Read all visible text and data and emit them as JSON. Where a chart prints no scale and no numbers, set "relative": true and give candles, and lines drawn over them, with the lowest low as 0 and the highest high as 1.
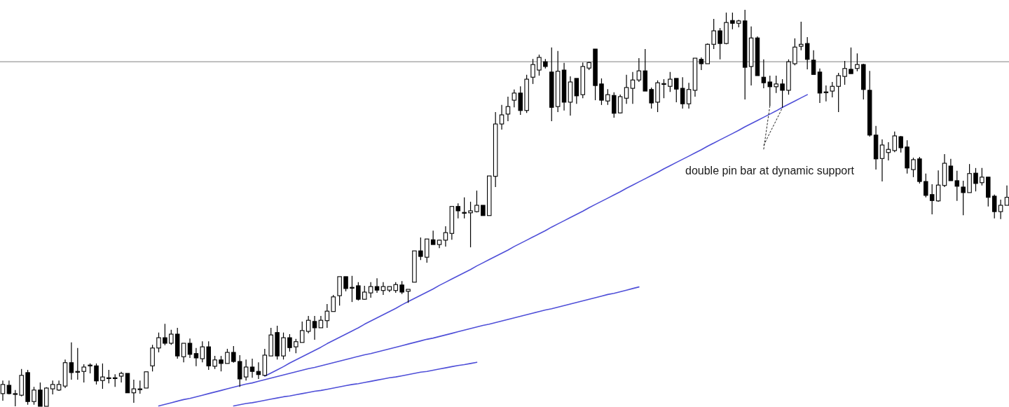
{
  "chart_data": {
    "type": "candlestick",
    "relative": true,
    "color": "#000000",
    "categories": [
      null,
      null,
      null,
      null,
      null,
      null,
      null,
      null,
      null,
      null,
      null,
      null,
      null,
      null,
      null,
      null,
      null,
      null,
      null,
      null,
      null,
      null,
      null,
      null,
      null,
      null,
      null,
      null,
      null,
      null,
      null,
      null,
      null,
      null,
      null,
      null,
      null,
      null,
      null,
      null,
      null,
      null,
      null,
      null,
      null,
      null,
      null,
      null,
      null,
      null,
      null,
      null,
      null,
      null,
      null,
      null,
      null,
      null,
      null,
      null,
      null,
      null,
      null,
      null,
      null,
      null,
      null,
      null,
      null,
      null,
      null,
      null,
      null,
      null,
      null,
      null,
      null,
      null,
      null,
      null,
      null,
      null,
      null,
      null,
      null,
      null,
      null,
      null,
      null,
      null,
      null,
      null,
      null,
      null,
      null,
      null,
      null,
      null,
      null,
      null,
      null,
      null,
      null,
      null,
      null,
      null,
      null,
      null,
      null,
      null,
      null,
      null,
      null,
      null,
      null,
      null,
      null,
      null,
      null,
      null,
      null,
      null,
      null,
      null,
      null,
      null,
      null,
      null,
      null,
      null,
      null,
      null,
      null,
      null,
      null,
      null,
      null,
      null,
      null,
      null,
      null,
      null,
      null,
      null,
      null,
      null,
      null,
      null,
      null,
      null,
      null,
      null,
      null,
      null,
      null,
      null,
      null,
      null,
      null,
      null,
      null,
      null
    ],
    "ohlc": [
      [
        0.032,
        0.065,
        0.014,
        0.055
      ],
      [
        0.053,
        0.065,
        0.03,
        0.032
      ],
      [
        0.032,
        0.041,
        0,
        0.032
      ],
      [
        0.028,
        0.094,
        0.025,
        0.078
      ],
      [
        0.085,
        0.092,
        0.004,
        0.012
      ],
      [
        0.012,
        0.049,
        0.004,
        0.041
      ],
      [
        0.041,
        0.06,
        0,
        0
      ],
      [
        0,
        0.048,
        0,
        0.046
      ],
      [
        0.044,
        0.065,
        0.03,
        0.055
      ],
      [
        0.041,
        0.065,
        0.039,
        0.055
      ],
      [
        0.051,
        0.118,
        0.046,
        0.11
      ],
      [
        0.11,
        0.161,
        0.067,
        0.085
      ],
      [
        0.088,
        0.147,
        0.067,
        0.088
      ],
      [
        0.088,
        0.106,
        0.06,
        0.099
      ],
      [
        0.104,
        0.108,
        0.083,
        0.104
      ],
      [
        0.102,
        0.108,
        0.055,
        0.064
      ],
      [
        0.065,
        0.108,
        0.044,
        0.074
      ],
      [
        0.072,
        0.092,
        0.058,
        0.072
      ],
      [
        0.072,
        0.081,
        0.049,
        0.072
      ],
      [
        0.076,
        0.087,
        0.06,
        0.083
      ],
      [
        0.083,
        0.083,
        0.034,
        0.034
      ],
      [
        0.034,
        0.067,
        0.009,
        0.044
      ],
      [
        0.044,
        0.065,
        0.032,
        0.044
      ],
      [
        0.046,
        0.087,
        0.046,
        0.087
      ],
      [
        0.102,
        0.155,
        0.088,
        0.147
      ],
      [
        0.147,
        0.186,
        0.136,
        0.173
      ],
      [
        0.173,
        0.208,
        0.154,
        0.159
      ],
      [
        0.159,
        0.193,
        0.155,
        0.182
      ],
      [
        0.182,
        0.198,
        0.12,
        0.127
      ],
      [
        0.125,
        0.159,
        0.111,
        0.159
      ],
      [
        0.159,
        0.171,
        0.122,
        0.131
      ],
      [
        0.133,
        0.147,
        0.101,
        0.122
      ],
      [
        0.12,
        0.164,
        0.111,
        0.15
      ],
      [
        0.15,
        0.164,
        0.092,
        0.102
      ],
      [
        0.101,
        0.127,
        0.094,
        0.117
      ],
      [
        0.117,
        0.127,
        0.088,
        0.108
      ],
      [
        0.108,
        0.145,
        0.108,
        0.136
      ],
      [
        0.136,
        0.152,
        0.11,
        0.113
      ],
      [
        0.113,
        0.129,
        0.049,
        0.069
      ],
      [
        0.074,
        0.118,
        0.065,
        0.099
      ],
      [
        0.099,
        0.12,
        0.072,
        0.088
      ],
      [
        0.088,
        0.111,
        0.069,
        0.08
      ],
      [
        0.078,
        0.145,
        0.076,
        0.129
      ],
      [
        0.127,
        0.198,
        0.127,
        0.18
      ],
      [
        0.186,
        0.203,
        0.118,
        0.127
      ],
      [
        0.127,
        0.186,
        0.118,
        0.173
      ],
      [
        0.173,
        0.182,
        0.138,
        0.148
      ],
      [
        0.15,
        0.17,
        0.134,
        0.163
      ],
      [
        0.161,
        0.214,
        0.161,
        0.191
      ],
      [
        0.189,
        0.228,
        0.184,
        0.217
      ],
      [
        0.214,
        0.228,
        0.168,
        0.198
      ],
      [
        0.198,
        0.228,
        0.198,
        0.217
      ],
      [
        0.216,
        0.258,
        0.198,
        0.24
      ],
      [
        0.239,
        0.281,
        0.239,
        0.276
      ],
      [
        0.279,
        0.327,
        0.254,
        0.327
      ],
      [
        0.327,
        0.327,
        0.29,
        0.297
      ],
      [
        0.3,
        0.329,
        0.263,
        0.3
      ],
      [
        0.304,
        0.313,
        0.267,
        0.27
      ],
      [
        0.27,
        0.304,
        0.269,
        0.288
      ],
      [
        0.286,
        0.313,
        0.274,
        0.302
      ],
      [
        0.302,
        0.323,
        0.286,
        0.293
      ],
      [
        0.292,
        0.313,
        0.281,
        0.302
      ],
      [
        0.293,
        0.302,
        0.288,
        0.302
      ],
      [
        0.292,
        0.313,
        0.286,
        0.307
      ],
      [
        0.306,
        0.316,
        0.283,
        0.288
      ],
      [
        0.29,
        0.295,
        0.261,
        0.295
      ],
      [
        0.313,
        0.392,
        0.313,
        0.392
      ],
      [
        0.392,
        0.426,
        0.369,
        0.378
      ],
      [
        0.376,
        0.422,
        0.362,
        0.422
      ],
      [
        0.42,
        0.443,
        0.408,
        0.408
      ],
      [
        0.408,
        0.42,
        0.399,
        0.419
      ],
      [
        0.419,
        0.454,
        0.403,
        0.438
      ],
      [
        0.436,
        0.504,
        0.42,
        0.504
      ],
      [
        0.504,
        0.512,
        0.474,
        0.493
      ],
      [
        0.489,
        0.527,
        0.474,
        0.489
      ],
      [
        0.488,
        0.516,
        0.401,
        0.493
      ],
      [
        0.491,
        0.544,
        0.489,
        0.507
      ],
      [
        0.507,
        0.507,
        0.481,
        0.481
      ],
      [
        0.481,
        0.581,
        0.481,
        0.581
      ],
      [
        0.58,
        0.742,
        0.553,
        0.712
      ],
      [
        0.712,
        0.76,
        0.698,
        0.735
      ],
      [
        0.737,
        0.781,
        0.719,
        0.756
      ],
      [
        0.772,
        0.799,
        0.754,
        0.79
      ],
      [
        0.79,
        0.807,
        0.735,
        0.746
      ],
      [
        0.746,
        0.836,
        0.74,
        0.825
      ],
      [
        0.83,
        0.876,
        0.813,
        0.862
      ],
      [
        0.848,
        0.887,
        0.834,
        0.88
      ],
      [
        0.869,
        0.876,
        0.852,
        0.857
      ],
      [
        0.843,
        0.905,
        0.719,
        0.754
      ],
      [
        0.756,
        0.896,
        0.742,
        0.845
      ],
      [
        0.848,
        0.866,
        0.746,
        0.767
      ],
      [
        0.767,
        0.832,
        0.733,
        0.818
      ],
      [
        0.827,
        0.827,
        0.763,
        0.783
      ],
      [
        0.786,
        0.867,
        0.777,
        0.857
      ],
      [
        0.853,
        0.869,
        0.848,
        0.867
      ],
      [
        0.901,
        0.901,
        0.772,
        0.809
      ],
      [
        0.813,
        0.827,
        0.76,
        0.772
      ],
      [
        0.77,
        0.8,
        0.76,
        0.786
      ],
      [
        0.784,
        0.792,
        0.728,
        0.739
      ],
      [
        0.74,
        0.786,
        0.739,
        0.781
      ],
      [
        0.777,
        0.836,
        0.763,
        0.804
      ],
      [
        0.802,
        0.843,
        0.763,
        0.823
      ],
      [
        0.823,
        0.878,
        0.818,
        0.846
      ],
      [
        0.846,
        0.901,
        0.795,
        0.795
      ],
      [
        0.799,
        0.804,
        0.751,
        0.765
      ],
      [
        0.767,
        0.822,
        0.742,
        0.816
      ],
      [
        0.814,
        0.825,
        0.777,
        0.814
      ],
      [
        0.807,
        0.843,
        0.793,
        0.825
      ],
      [
        0.827,
        0.827,
        0.767,
        0.8
      ],
      [
        0.802,
        0.83,
        0.751,
        0.763
      ],
      [
        0.763,
        0.816,
        0.751,
        0.799
      ],
      [
        0.797,
        0.878,
        0.781,
        0.878
      ],
      [
        0.875,
        0.88,
        0.848,
        0.864
      ],
      [
        0.864,
        0.915,
        0.864,
        0.913
      ],
      [
        0.913,
        0.977,
        0.901,
        0.947
      ],
      [
        0.947,
        0.954,
        0.875,
        0.915
      ],
      [
        0.915,
        0.993,
        0.913,
        0.968
      ],
      [
        0.973,
        0.993,
        0.951,
        0.966
      ],
      [
        0.966,
        0.975,
        0.956,
        0.972
      ],
      [
        0.972,
        1,
        0.774,
        0.855
      ],
      [
        0.857,
        0.958,
        0.809,
        0.929
      ],
      [
        0.929,
        0.933,
        0.834,
        0.834
      ],
      [
        0.83,
        0.875,
        0.802,
        0.816
      ],
      [
        0.818,
        0.834,
        0.758,
        0.806
      ],
      [
        0.806,
        0.834,
        0.79,
        0.813
      ],
      [
        0.813,
        0.825,
        0.753,
        0.797
      ],
      [
        0.797,
        0.875,
        0.786,
        0.869
      ],
      [
        0.864,
        0.928,
        0.86,
        0.906
      ],
      [
        0.908,
        0.97,
        0.898,
        0.913
      ],
      [
        0.915,
        0.931,
        0.85,
        0.875
      ],
      [
        0.873,
        0.898,
        0.837,
        0.837
      ],
      [
        0.843,
        0.852,
        0.765,
        0.79
      ],
      [
        0.793,
        0.809,
        0.769,
        0.793
      ],
      [
        0.795,
        0.818,
        0.779,
        0.807
      ],
      [
        0.807,
        0.841,
        0.742,
        0.834
      ],
      [
        0.832,
        0.871,
        0.811,
        0.852
      ],
      [
        0.85,
        0.905,
        0.839,
        0.839
      ],
      [
        0.852,
        0.89,
        0.845,
        0.862
      ],
      [
        0.862,
        0.864,
        0.774,
        0.799
      ],
      [
        0.797,
        0.846,
        0.68,
        0.684
      ],
      [
        0.684,
        0.707,
        0.597,
        0.624
      ],
      [
        0.625,
        0.673,
        0.567,
        0.659
      ],
      [
        0.64,
        0.666,
        0.62,
        0.648
      ],
      [
        0.645,
        0.693,
        0.641,
        0.682
      ],
      [
        0.68,
        0.682,
        0.64,
        0.652
      ],
      [
        0.654,
        0.671,
        0.587,
        0.601
      ],
      [
        0.597,
        0.627,
        0.578,
        0.622
      ],
      [
        0.624,
        0.629,
        0.562,
        0.567
      ],
      [
        0.567,
        0.587,
        0.527,
        0.532
      ],
      [
        0.534,
        0.56,
        0.484,
        0.519
      ],
      [
        0.518,
        0.595,
        0.516,
        0.558
      ],
      [
        0.557,
        0.636,
        0.553,
        0.613
      ],
      [
        0.606,
        0.624,
        0.569,
        0.569
      ],
      [
        0.569,
        0.594,
        0.518,
        0.555
      ],
      [
        0.553,
        0.569,
        0.482,
        0.539
      ],
      [
        0.539,
        0.611,
        0.539,
        0.587
      ],
      [
        0.588,
        0.601,
        0.542,
        0.562
      ],
      [
        0.564,
        0.601,
        0.557,
        0.578
      ],
      [
        0.578,
        0.578,
        0.504,
        0.527
      ],
      [
        0.53,
        0.534,
        0.474,
        0.491
      ],
      [
        0.491,
        0.521,
        0.472,
        0.507
      ],
      [
        0.507,
        0.557,
        0.507,
        0.527
      ]
    ],
    "series": [
      {
        "type": "line",
        "color": "#4f4fd8",
        "values": [
          null,
          null,
          null,
          null,
          null,
          null,
          null,
          null,
          null,
          null,
          null,
          null,
          null,
          null,
          null,
          null,
          null,
          null,
          null,
          null,
          null,
          null,
          null,
          null,
          null,
          null,
          null,
          null,
          null,
          null,
          null,
          null,
          null,
          null,
          null,
          null,
          null,
          null,
          null,
          null,
          null,
          null,
          0.076,
          0.084,
          0.092,
          0.1,
          0.109,
          0.117,
          0.125,
          0.133,
          0.141,
          0.149,
          0.158,
          0.166,
          0.174,
          0.182,
          0.19,
          0.198,
          0.207,
          0.215,
          0.223,
          0.231,
          0.239,
          0.247,
          0.256,
          0.264,
          0.272,
          0.28,
          0.288,
          0.296,
          0.305,
          0.313,
          0.321,
          0.329,
          0.337,
          0.345,
          0.354,
          0.362,
          0.37,
          0.378,
          0.386,
          0.394,
          0.403,
          0.411,
          0.419,
          0.427,
          0.435,
          0.443,
          0.452,
          0.46,
          0.468,
          0.476,
          0.484,
          0.492,
          0.501,
          0.509,
          0.517,
          0.525,
          0.533,
          0.541,
          0.55,
          0.558,
          0.566,
          0.574,
          0.582,
          0.59,
          0.599,
          0.607,
          0.615,
          0.623,
          0.631,
          0.639,
          0.647,
          0.656,
          0.664,
          0.672,
          0.68,
          0.688,
          0.696,
          0.705,
          0.713,
          0.721,
          0.729,
          0.737,
          0.745,
          0.754,
          0.762,
          0.77,
          0.778,
          0.786,
          null,
          null,
          null,
          null,
          null,
          null,
          null,
          null,
          null,
          null,
          null,
          null,
          null,
          null,
          null,
          null,
          null,
          null,
          null,
          null,
          null,
          null,
          null,
          null,
          null,
          null,
          null,
          null,
          null,
          null,
          null,
          null
        ]
      },
      {
        "type": "line",
        "color": "#4f4fd8",
        "values": [
          null,
          null,
          null,
          null,
          null,
          null,
          null,
          null,
          null,
          null,
          null,
          null,
          null,
          null,
          null,
          null,
          null,
          null,
          null,
          null,
          null,
          null,
          null,
          null,
          null,
          0.001,
          0.005,
          0.009,
          0.013,
          0.017,
          0.02,
          0.024,
          0.028,
          0.032,
          0.036,
          0.04,
          0.044,
          0.048,
          0.052,
          0.056,
          0.059,
          0.063,
          0.067,
          0.071,
          0.075,
          0.079,
          0.083,
          0.087,
          0.091,
          0.095,
          0.098,
          0.102,
          0.106,
          0.11,
          0.114,
          0.118,
          0.122,
          0.126,
          0.13,
          0.133,
          0.137,
          0.141,
          0.145,
          0.149,
          0.153,
          0.157,
          0.161,
          0.165,
          0.169,
          0.172,
          0.176,
          0.18,
          0.184,
          0.188,
          0.192,
          0.196,
          0.2,
          0.204,
          0.207,
          0.211,
          0.215,
          0.219,
          0.223,
          0.227,
          0.231,
          0.235,
          0.239,
          0.243,
          0.246,
          0.25,
          0.254,
          0.258,
          0.262,
          0.266,
          0.27,
          0.274,
          0.278,
          0.282,
          0.285,
          0.289,
          0.293,
          0.297,
          0.301,
          null,
          null,
          null,
          null,
          null,
          null,
          null,
          null,
          null,
          null,
          null,
          null,
          null,
          null,
          null,
          null,
          null,
          null,
          null,
          null,
          null,
          null,
          null,
          null,
          null,
          null,
          null,
          null,
          null,
          null,
          null,
          null,
          null,
          null,
          null,
          null,
          null,
          null,
          null,
          null,
          null,
          null,
          null,
          null,
          null,
          null,
          null,
          null,
          null,
          null,
          null,
          null,
          null,
          null,
          null,
          null,
          null,
          null,
          null
        ]
      },
      {
        "type": "line",
        "color": "#4f4fd8",
        "values": [
          null,
          null,
          null,
          null,
          null,
          null,
          null,
          null,
          null,
          null,
          null,
          null,
          null,
          null,
          null,
          null,
          null,
          null,
          null,
          null,
          null,
          null,
          null,
          null,
          null,
          null,
          null,
          null,
          null,
          null,
          null,
          null,
          null,
          null,
          null,
          null,
          null,
          0.001,
          0.004,
          0.007,
          0.009,
          0.012,
          0.015,
          0.018,
          0.021,
          0.024,
          0.026,
          0.029,
          0.032,
          0.035,
          0.038,
          0.04,
          0.043,
          0.046,
          0.049,
          0.052,
          0.055,
          0.057,
          0.06,
          0.063,
          0.066,
          0.069,
          0.072,
          0.074,
          0.077,
          0.08,
          0.083,
          0.086,
          0.088,
          0.091,
          0.094,
          0.097,
          0.1,
          0.103,
          0.105,
          0.108,
          0.111,
          null,
          null,
          null,
          null,
          null,
          null,
          null,
          null,
          null,
          null,
          null,
          null,
          null,
          null,
          null,
          null,
          null,
          null,
          null,
          null,
          null,
          null,
          null,
          null,
          null,
          null,
          null,
          null,
          null,
          null,
          null,
          null,
          null,
          null,
          null,
          null,
          null,
          null,
          null,
          null,
          null,
          null,
          null,
          null,
          null,
          null,
          null,
          null,
          null,
          null,
          null,
          null,
          null,
          null,
          null,
          null,
          null,
          null,
          null,
          null,
          null,
          null,
          null,
          null,
          null,
          null,
          null,
          null,
          null,
          null,
          null,
          null,
          null,
          null,
          null,
          null,
          null,
          null,
          null,
          null,
          null,
          null,
          null,
          null,
          null
        ]
      },
      {
        "type": "line",
        "color": "#222222",
        "line_style": "dashed",
        "values": [
          null,
          null,
          null,
          null,
          null,
          null,
          null,
          null,
          null,
          null,
          null,
          null,
          null,
          null,
          null,
          null,
          null,
          null,
          null,
          null,
          null,
          null,
          null,
          null,
          null,
          null,
          null,
          null,
          null,
          null,
          null,
          null,
          null,
          null,
          null,
          null,
          null,
          null,
          null,
          null,
          null,
          null,
          null,
          null,
          null,
          null,
          null,
          null,
          null,
          null,
          null,
          null,
          null,
          null,
          null,
          null,
          null,
          null,
          null,
          null,
          null,
          null,
          null,
          null,
          null,
          null,
          null,
          null,
          null,
          null,
          null,
          null,
          null,
          null,
          null,
          null,
          null,
          null,
          null,
          null,
          null,
          null,
          null,
          null,
          null,
          null,
          null,
          null,
          null,
          null,
          null,
          null,
          null,
          null,
          null,
          null,
          null,
          null,
          null,
          null,
          null,
          null,
          null,
          null,
          null,
          null,
          null,
          null,
          null,
          null,
          null,
          null,
          null,
          null,
          null,
          null,
          null,
          null,
          null,
          null,
          null,
          null,
          0.648,
          0.758,
          null,
          null,
          null,
          null,
          null,
          null,
          null,
          null,
          null,
          null,
          null,
          null,
          null,
          null,
          null,
          null,
          null,
          null,
          null,
          null,
          null,
          null,
          null,
          null,
          null,
          null,
          null,
          null,
          null,
          null,
          null,
          null,
          null,
          null,
          null,
          null,
          null,
          null
        ]
      },
      {
        "type": "line",
        "color": "#222222",
        "line_style": "dashed",
        "values": [
          null,
          null,
          null,
          null,
          null,
          null,
          null,
          null,
          null,
          null,
          null,
          null,
          null,
          null,
          null,
          null,
          null,
          null,
          null,
          null,
          null,
          null,
          null,
          null,
          null,
          null,
          null,
          null,
          null,
          null,
          null,
          null,
          null,
          null,
          null,
          null,
          null,
          null,
          null,
          null,
          null,
          null,
          null,
          null,
          null,
          null,
          null,
          null,
          null,
          null,
          null,
          null,
          null,
          null,
          null,
          null,
          null,
          null,
          null,
          null,
          null,
          null,
          null,
          null,
          null,
          null,
          null,
          null,
          null,
          null,
          null,
          null,
          null,
          null,
          null,
          null,
          null,
          null,
          null,
          null,
          null,
          null,
          null,
          null,
          null,
          null,
          null,
          null,
          null,
          null,
          null,
          null,
          null,
          null,
          null,
          null,
          null,
          null,
          null,
          null,
          null,
          null,
          null,
          null,
          null,
          null,
          null,
          null,
          null,
          null,
          null,
          null,
          null,
          null,
          null,
          null,
          null,
          null,
          null,
          null,
          null,
          null,
          0.658,
          0.69,
          0.721,
          0.753,
          null,
          null,
          null,
          null,
          null,
          null,
          null,
          null,
          null,
          null,
          null,
          null,
          null,
          null,
          null,
          null,
          null,
          null,
          null,
          null,
          null,
          null,
          null,
          null,
          null,
          null,
          null,
          null,
          null,
          null,
          null,
          null,
          null,
          null,
          null,
          null
        ]
      }
    ],
    "ref_lines": [
      {
        "axis": "y",
        "value": 0.869,
        "color": "#9a9a9a",
        "line_style": "solid"
      }
    ],
    "annotations": [
      "double pin bar at dynamic support"
    ]
  }
}
